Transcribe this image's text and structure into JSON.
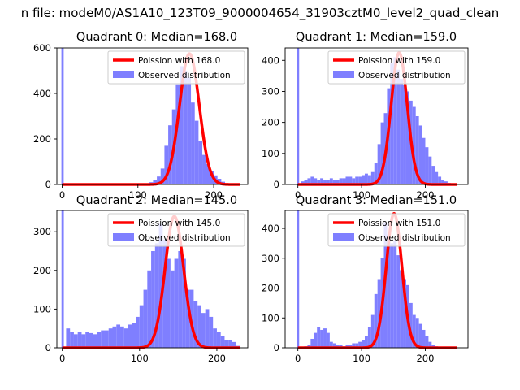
{
  "figure": {
    "suptitle": "n file: modeM0/AS1A10_123T09_9000004654_31903cztM0_level2_quad_clean"
  },
  "colors": {
    "bar": "#7f7fff",
    "poisson_line": "#ff0000",
    "axis": "#000000",
    "legend_border": "#cccccc"
  },
  "chart_data": [
    {
      "type": "bar",
      "title": "Quadrant 0: Median=168.0",
      "legend": {
        "placement": "upper right",
        "line_label": "Poission with 168.0",
        "bar_label": "Observed distribution"
      },
      "xlim": [
        -7,
        245
      ],
      "ylim": [
        0,
        600
      ],
      "xticks": [
        0,
        100,
        200
      ],
      "yticks": [
        0,
        200,
        400,
        600
      ],
      "bin_width": 5,
      "spike": {
        "x": 0,
        "value": 600
      },
      "bins_start": 110,
      "values": [
        5,
        10,
        20,
        35,
        70,
        170,
        260,
        330,
        440,
        520,
        500,
        470,
        360,
        280,
        190,
        130,
        90,
        60,
        40,
        25,
        12,
        5
      ],
      "poisson": {
        "lambda": 168,
        "amplitude": 575,
        "sigma": 13,
        "x_range": [
          0,
          235
        ]
      }
    },
    {
      "type": "bar",
      "title": "Quadrant 1: Median=159.0",
      "legend": {
        "placement": "upper right",
        "line_label": "Poission with 159.0",
        "bar_label": "Observed distribution"
      },
      "xlim": [
        -20,
        267
      ],
      "ylim": [
        0,
        440
      ],
      "xticks": [
        0,
        100,
        200
      ],
      "yticks": [
        0,
        100,
        200,
        300,
        400
      ],
      "bin_width": 5,
      "spike": {
        "x": 0,
        "value": 440
      },
      "bins_start": 5,
      "values": [
        10,
        15,
        20,
        25,
        20,
        15,
        20,
        15,
        15,
        20,
        15,
        15,
        20,
        20,
        25,
        25,
        20,
        25,
        25,
        30,
        35,
        30,
        40,
        70,
        130,
        200,
        230,
        310,
        390,
        410,
        370,
        340,
        320,
        300,
        270,
        250,
        220,
        190,
        150,
        120,
        90,
        60,
        40,
        25,
        15,
        10,
        5
      ],
      "poisson": {
        "lambda": 159,
        "amplitude": 425,
        "sigma": 12.6,
        "x_range": [
          0,
          250
        ]
      }
    },
    {
      "type": "bar",
      "title": "Quadrant 2: Median=145.0",
      "legend": {
        "placement": "upper right",
        "line_label": "Poission with 145.0",
        "bar_label": "Observed distribution"
      },
      "xlim": [
        -7,
        240
      ],
      "ylim": [
        0,
        355
      ],
      "xticks": [
        0,
        100,
        200
      ],
      "yticks": [
        0,
        100,
        200,
        300
      ],
      "bin_width": 5,
      "spike": {
        "x": 0,
        "value": 355
      },
      "bins_start": 5,
      "values": [
        50,
        40,
        35,
        40,
        35,
        40,
        38,
        35,
        40,
        45,
        45,
        50,
        55,
        60,
        55,
        50,
        60,
        65,
        80,
        110,
        150,
        200,
        250,
        270,
        320,
        280,
        230,
        200,
        230,
        250,
        230,
        150,
        150,
        120,
        110,
        90,
        100,
        80,
        50,
        40,
        30,
        20,
        20,
        15,
        5
      ],
      "poisson": {
        "lambda": 145,
        "amplitude": 340,
        "sigma": 12,
        "x_range": [
          0,
          230
        ]
      }
    },
    {
      "type": "bar",
      "title": "Quadrant 3: Median=151.0",
      "legend": {
        "placement": "upper right",
        "line_label": "Poission with 151.0",
        "bar_label": "Observed distribution"
      },
      "xlim": [
        -20,
        267
      ],
      "ylim": [
        0,
        460
      ],
      "xticks": [
        0,
        100,
        200
      ],
      "yticks": [
        0,
        100,
        200,
        300,
        400
      ],
      "bin_width": 5,
      "spike": {
        "x": 0,
        "value": 460
      },
      "bins_start": 10,
      "values": [
        5,
        10,
        30,
        50,
        70,
        60,
        65,
        50,
        20,
        15,
        10,
        10,
        5,
        10,
        10,
        15,
        15,
        20,
        25,
        40,
        70,
        110,
        180,
        230,
        300,
        420,
        380,
        350,
        360,
        310,
        260,
        230,
        210,
        150,
        110,
        100,
        80,
        60,
        40,
        20,
        10,
        5
      ],
      "poisson": {
        "lambda": 151,
        "amplitude": 450,
        "sigma": 12.3,
        "x_range": [
          0,
          250
        ]
      }
    }
  ]
}
